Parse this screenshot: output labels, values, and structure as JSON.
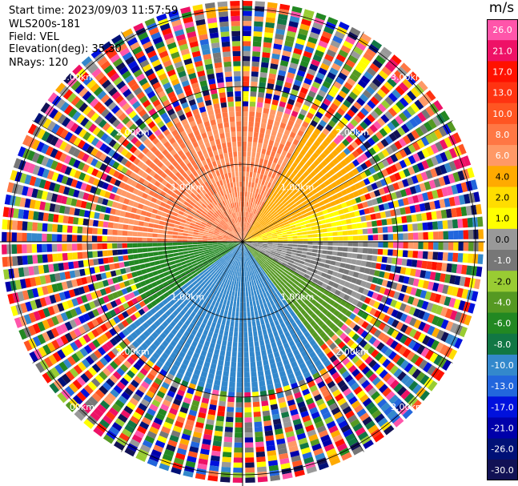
{
  "header": {
    "start_time": "Start time: 2023/09/03 11:57:59",
    "station": "WLS200s-181",
    "field": "Field: VEL",
    "elevation": "Elevation(deg): 35.30",
    "nrays": "NRays: 120"
  },
  "chart_data": {
    "type": "heatmap",
    "subtype": "radar-ppi",
    "field": "VEL",
    "unit": "m/s",
    "elevation_deg": 35.3,
    "nrays": 120,
    "range_rings_km": [
      1.0,
      2.0,
      3.0
    ],
    "ring_labels": [
      "1.00km",
      "2.00km",
      "3.00km"
    ],
    "colorbar": {
      "labels": [
        "26.0",
        "21.0",
        "17.0",
        "13.0",
        "10.0",
        "8.0",
        "6.0",
        "4.0",
        "2.0",
        "1.0",
        "0.0",
        "-1.0",
        "-2.0",
        "-4.0",
        "-6.0",
        "-8.0",
        "-10.0",
        "-13.0",
        "-17.0",
        "-21.0",
        "-26.0",
        "-30.0"
      ],
      "colors": [
        "#ff55aa",
        "#ee1166",
        "#ff1100",
        "#ff3311",
        "#ff5522",
        "#ff7744",
        "#ff9966",
        "#ffaa00",
        "#ffdd00",
        "#ffff00",
        "#999999",
        "#777777",
        "#99cc33",
        "#559922",
        "#228822",
        "#117744",
        "#3388cc",
        "#2266dd",
        "#0011dd",
        "#0000aa",
        "#001177",
        "#111155"
      ]
    },
    "sectors": [
      {
        "azimuth_from_deg": 270,
        "azimuth_to_deg": 30,
        "valid_range_km": 1.75,
        "velocity_ms": 8
      },
      {
        "azimuth_from_deg": 30,
        "azimuth_to_deg": 70,
        "valid_range_km": 1.75,
        "velocity_ms": 5
      },
      {
        "azimuth_from_deg": 70,
        "azimuth_to_deg": 90,
        "valid_range_km": 1.6,
        "velocity_ms": 2
      },
      {
        "azimuth_from_deg": 90,
        "azimuth_to_deg": 120,
        "valid_range_km": 1.75,
        "velocity_ms": 0
      },
      {
        "azimuth_from_deg": 120,
        "azimuth_to_deg": 145,
        "valid_range_km": 1.7,
        "velocity_ms": -3
      },
      {
        "azimuth_from_deg": 145,
        "azimuth_to_deg": 235,
        "valid_range_km": 2.0,
        "velocity_ms": -9
      },
      {
        "azimuth_from_deg": 235,
        "azimuth_to_deg": 270,
        "valid_range_km": 1.5,
        "velocity_ms": -5
      }
    ]
  }
}
